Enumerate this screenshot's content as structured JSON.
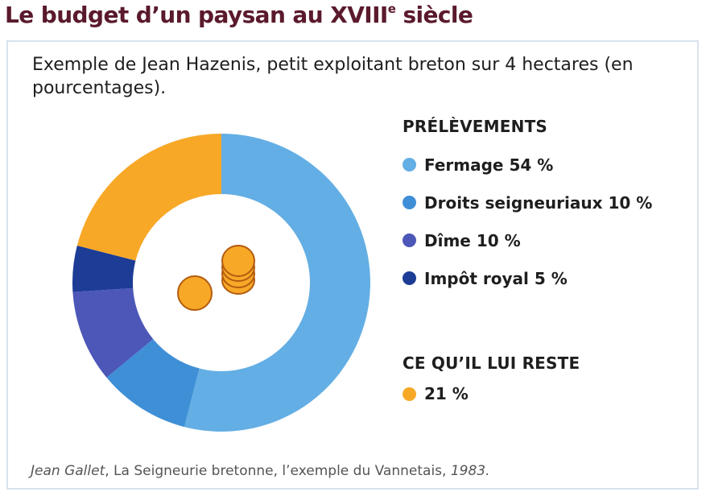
{
  "page": {
    "title": "Le budget d’un paysan au XVIII",
    "title_sup": "e",
    "title_end": " siècle",
    "intro": "Exemple de Jean Hazenis, petit exploitant breton sur 4 hectares (en pourcentages).",
    "source_author": "Jean Gallet",
    "source_sep": ", ",
    "source_title": "La Seigneurie bretonne, l’exemple du Vannetais",
    "source_year_sep": ", ",
    "source_year": "1983."
  },
  "legend": {
    "group1_title": "PRÉLÈVEMENTS",
    "group2_title": "CE QU’IL LUI RESTE",
    "items": [
      {
        "label": "Fermage 54 %",
        "color": "#63aee4"
      },
      {
        "label": "Droits seigneuriaux 10 %",
        "color": "#3f8fd6"
      },
      {
        "label": "Dîme 10 %",
        "color": "#4c57b8"
      },
      {
        "label": "Impôt royal 5 %",
        "color": "#1c3c96"
      },
      {
        "label": "21 %",
        "color": "#f7a827"
      }
    ]
  },
  "chart_data": {
    "type": "pie",
    "donut": true,
    "categories": [
      "Fermage",
      "Droits seigneuriaux",
      "Dîme",
      "Impôt royal",
      "Ce qu’il lui reste"
    ],
    "values": [
      54,
      10,
      10,
      5,
      21
    ],
    "colors": [
      "#63aee4",
      "#3f8fd6",
      "#4c57b8",
      "#1c3c96",
      "#f7a827"
    ],
    "unit": "%",
    "center_icon": "coins-icon"
  }
}
